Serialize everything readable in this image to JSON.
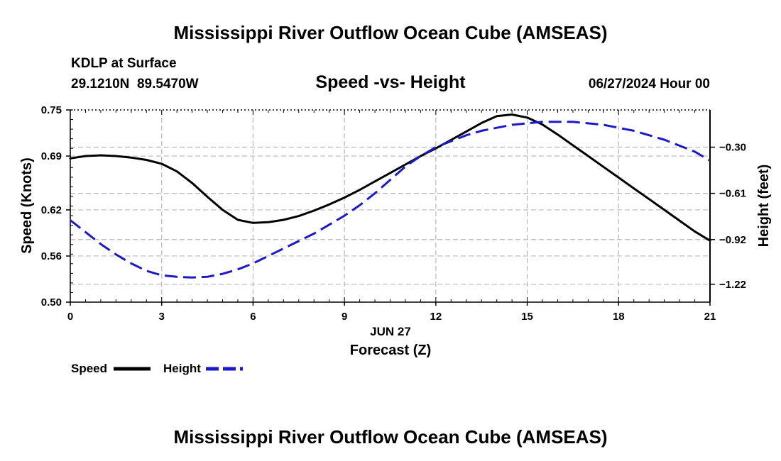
{
  "header": {
    "title": "Mississippi River Outflow Ocean Cube (AMSEAS)",
    "station": "KDLP at Surface",
    "location": "29.1210N  89.5470W",
    "subtitle": "Speed -vs- Height",
    "datetime": "06/27/2024 Hour 00"
  },
  "footer": {
    "title": "Mississippi River Outflow Ocean Cube (AMSEAS)"
  },
  "chart_data": {
    "type": "line",
    "title": "Speed -vs- Height",
    "xlabel": "Forecast (Z)",
    "xlabel_date": "JUN 27",
    "ylabel_left": "Speed (Knots)",
    "ylabel_right": "Height (feet)",
    "xlim": [
      0,
      21
    ],
    "ylim_left": [
      0.5,
      0.75
    ],
    "ylim_right": [
      -1.34,
      -0.05
    ],
    "x_ticks": [
      0,
      3,
      6,
      9,
      12,
      15,
      18,
      21
    ],
    "x_tick_labels": [
      "0",
      "3",
      "6",
      "9",
      "12",
      "15",
      "18",
      "21"
    ],
    "y_left_ticks": [
      0.5,
      0.56,
      0.62,
      0.69,
      0.75
    ],
    "y_left_tick_labels": [
      "0.50",
      "0.56",
      "0.62",
      "0.69",
      "0.75"
    ],
    "y_right_ticks": [
      -0.3,
      -0.61,
      -0.92,
      -1.22
    ],
    "y_right_tick_labels": [
      "−0.30",
      "−0.61",
      "−0.92",
      "−1.22"
    ],
    "grid": true,
    "legend_position": "bottom-left",
    "series": [
      {
        "name": "Speed",
        "axis": "left",
        "color": "#000000",
        "style": "solid",
        "x": [
          0,
          0.5,
          1,
          1.5,
          2,
          2.5,
          3,
          3.5,
          4,
          4.5,
          5,
          5.5,
          6,
          6.5,
          7,
          7.5,
          8,
          8.5,
          9,
          9.5,
          10,
          10.5,
          11,
          11.5,
          12,
          12.5,
          13,
          13.5,
          14,
          14.5,
          15,
          15.5,
          16,
          16.5,
          17,
          17.5,
          18,
          18.5,
          19,
          19.5,
          20,
          20.5,
          21
        ],
        "values": [
          0.687,
          0.69,
          0.691,
          0.69,
          0.688,
          0.685,
          0.68,
          0.67,
          0.655,
          0.637,
          0.62,
          0.607,
          0.603,
          0.604,
          0.607,
          0.612,
          0.619,
          0.627,
          0.636,
          0.646,
          0.657,
          0.668,
          0.679,
          0.69,
          0.7,
          0.711,
          0.722,
          0.733,
          0.742,
          0.744,
          0.74,
          0.731,
          0.718,
          0.704,
          0.69,
          0.676,
          0.662,
          0.648,
          0.634,
          0.62,
          0.606,
          0.592,
          0.58
        ]
      },
      {
        "name": "Height",
        "axis": "right",
        "color": "#1a1acc",
        "style": "dashed",
        "x": [
          0,
          0.5,
          1,
          1.5,
          2,
          2.5,
          3,
          3.5,
          4,
          4.5,
          5,
          5.5,
          6,
          6.5,
          7,
          7.5,
          8,
          8.5,
          9,
          9.5,
          10,
          10.5,
          11,
          11.5,
          12,
          12.5,
          13,
          13.5,
          14,
          14.5,
          15,
          15.5,
          16,
          16.5,
          17,
          17.5,
          18,
          18.5,
          19,
          19.5,
          20,
          20.5,
          21
        ],
        "values": [
          -0.79,
          -0.87,
          -0.95,
          -1.02,
          -1.08,
          -1.13,
          -1.16,
          -1.17,
          -1.175,
          -1.17,
          -1.15,
          -1.12,
          -1.08,
          -1.03,
          -0.98,
          -0.93,
          -0.88,
          -0.82,
          -0.76,
          -0.69,
          -0.61,
          -0.52,
          -0.43,
          -0.36,
          -0.3,
          -0.26,
          -0.22,
          -0.19,
          -0.17,
          -0.15,
          -0.14,
          -0.13,
          -0.13,
          -0.13,
          -0.14,
          -0.15,
          -0.17,
          -0.19,
          -0.22,
          -0.25,
          -0.29,
          -0.33,
          -0.39
        ]
      }
    ]
  }
}
